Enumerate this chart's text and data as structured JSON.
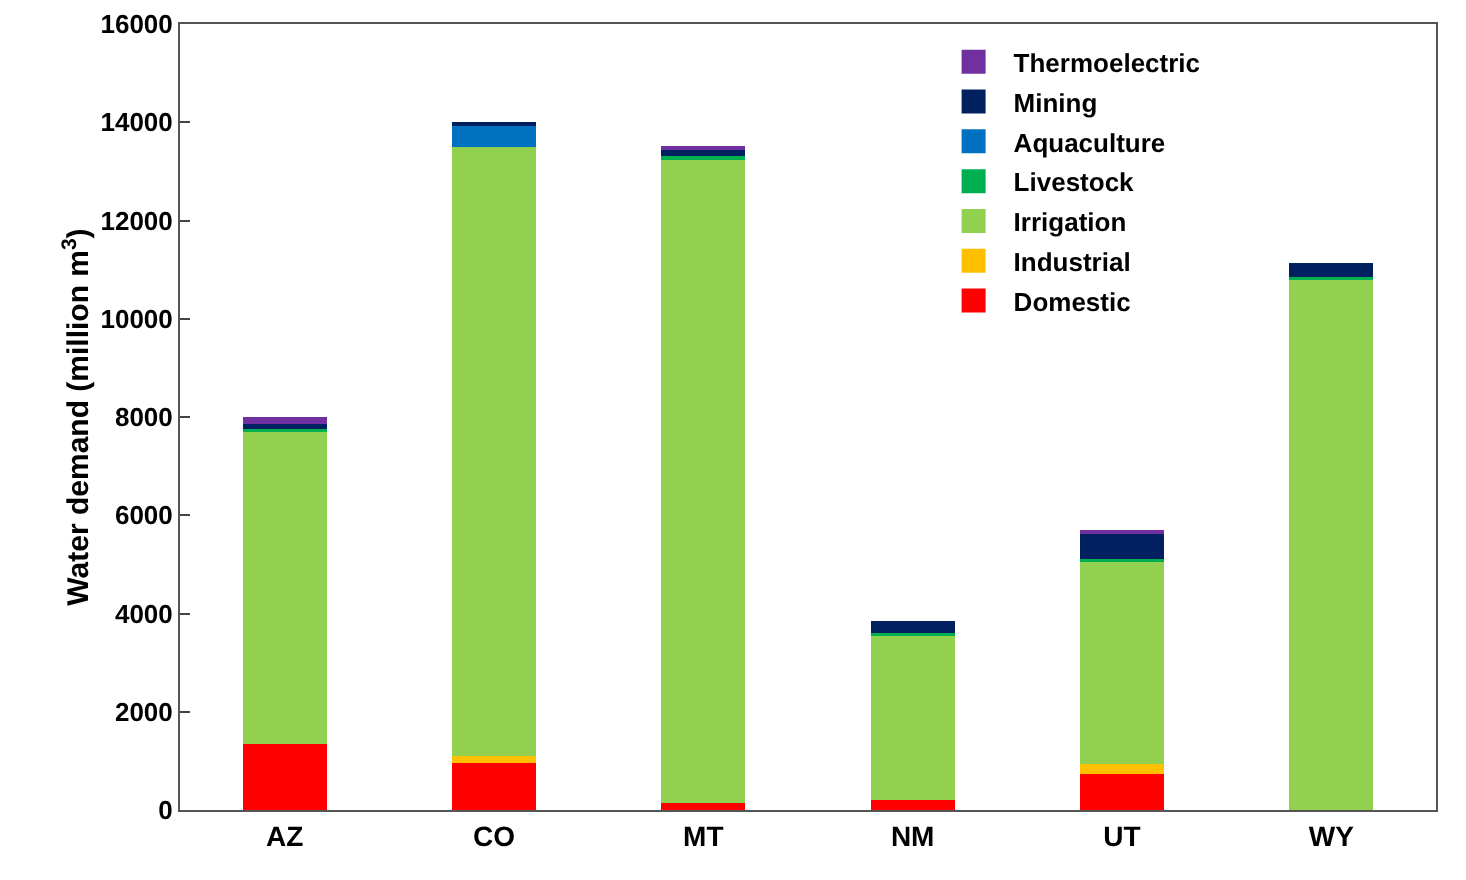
{
  "chart_data": {
    "type": "bar",
    "stacked": true,
    "ylabel": "Water demand (million m$^{3}$)",
    "categories": [
      "AZ",
      "CO",
      "MT",
      "NM",
      "UT",
      "WY"
    ],
    "series": [
      {
        "name": "Domestic",
        "color": "#ff0000",
        "values": [
          1350,
          950,
          150,
          200,
          730,
          0
        ]
      },
      {
        "name": "Industrial",
        "color": "#ffc000",
        "values": [
          0,
          150,
          0,
          0,
          200,
          0
        ]
      },
      {
        "name": "Irrigation",
        "color": "#92d050",
        "values": [
          6350,
          12400,
          13120,
          3350,
          4120,
          10800
        ]
      },
      {
        "name": "Livestock",
        "color": "#00b050",
        "values": [
          50,
          0,
          50,
          50,
          50,
          50
        ]
      },
      {
        "name": "Aquaculture",
        "color": "#0070c0",
        "values": [
          0,
          450,
          0,
          0,
          0,
          0
        ]
      },
      {
        "name": "Mining",
        "color": "#002060",
        "values": [
          100,
          50,
          130,
          240,
          520,
          280
        ]
      },
      {
        "name": "Thermoelectric",
        "color": "#7030a0",
        "values": [
          150,
          0,
          50,
          0,
          50,
          0
        ]
      }
    ],
    "ylim": [
      0,
      16000
    ],
    "yticks": [
      0,
      2000,
      4000,
      6000,
      8000,
      10000,
      12000,
      14000,
      16000
    ],
    "grid": false,
    "legend": "top right"
  }
}
